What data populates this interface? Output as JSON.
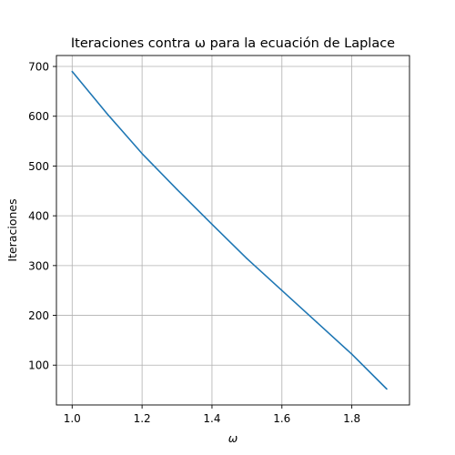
{
  "chart_data": {
    "type": "line",
    "title": "Iteraciones contra ω para la ecuación de Laplace",
    "xlabel": "ω",
    "ylabel": "Iteraciones",
    "xlim": [
      0.955,
      1.965
    ],
    "ylim": [
      20,
      722
    ],
    "grid": true,
    "x_ticks": [
      1.0,
      1.2,
      1.4,
      1.6,
      1.8
    ],
    "x_tick_labels": [
      "1.0",
      "1.2",
      "1.4",
      "1.6",
      "1.8"
    ],
    "y_ticks": [
      100,
      200,
      300,
      400,
      500,
      600,
      700
    ],
    "y_tick_labels": [
      "100",
      "200",
      "300",
      "400",
      "500",
      "600",
      "700"
    ],
    "series": [
      {
        "name": "Iteraciones",
        "color": "#1f77b4",
        "x": [
          1.0,
          1.1,
          1.2,
          1.3,
          1.4,
          1.5,
          1.6,
          1.7,
          1.8,
          1.9
        ],
        "y": [
          690,
          605,
          525,
          453,
          383,
          314,
          250,
          186,
          122,
          52
        ]
      }
    ]
  }
}
